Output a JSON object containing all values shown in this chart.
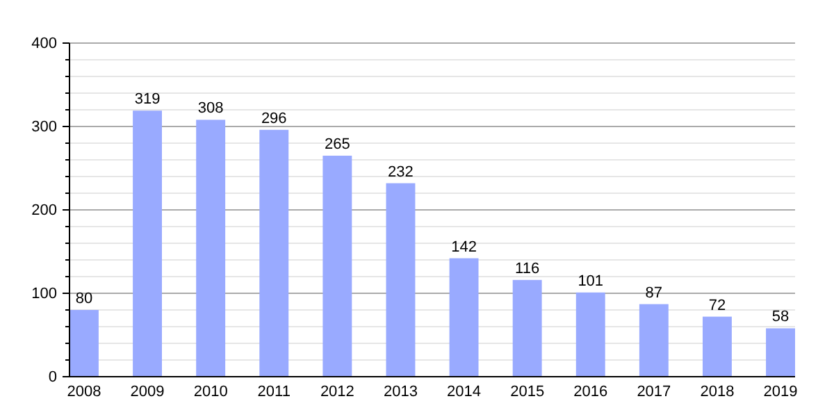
{
  "chart_data": {
    "type": "bar",
    "categories": [
      "2008",
      "2009",
      "2010",
      "2011",
      "2012",
      "2013",
      "2014",
      "2015",
      "2016",
      "2017",
      "2018",
      "2019"
    ],
    "values": [
      80,
      319,
      308,
      296,
      265,
      232,
      142,
      116,
      101,
      87,
      72,
      58
    ],
    "color": "#99aaff",
    "ylim": [
      0,
      400
    ],
    "yticks": [
      0,
      {
        "value": 20,
        "label": null
      },
      {
        "value": 40,
        "label": null
      },
      {
        "value": 60,
        "label": null
      },
      {
        "value": 80,
        "label": null
      },
      100,
      {
        "value": 120,
        "label": null
      },
      {
        "value": 140,
        "label": null
      },
      {
        "value": 160,
        "label": null
      },
      {
        "value": 180,
        "label": null
      },
      200,
      {
        "value": 220,
        "label": null
      },
      {
        "value": 240,
        "label": null
      },
      {
        "value": 260,
        "label": null
      },
      {
        "value": 280,
        "label": null
      },
      300,
      {
        "value": 320,
        "label": null
      },
      {
        "value": 340,
        "label": null
      },
      {
        "value": 360,
        "label": null
      },
      {
        "value": 380,
        "label": null
      },
      400
    ],
    "grid": true,
    "data_labels": true
  }
}
